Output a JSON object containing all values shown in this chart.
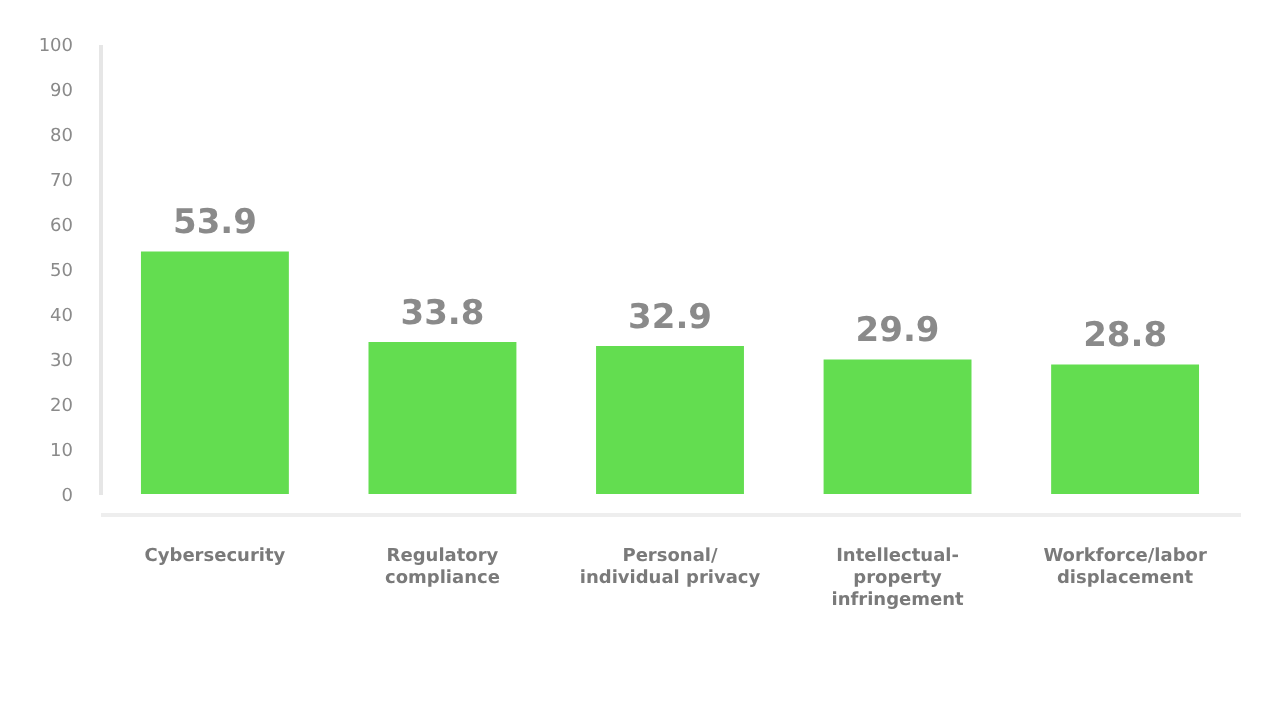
{
  "chart_data": {
    "type": "bar",
    "categories": [
      "Cybersecurity",
      "Regulatory compliance",
      "Personal/ individual privacy",
      "Intellectual-property infringement",
      "Workforce/labor displacement"
    ],
    "values": [
      53.9,
      33.8,
      32.9,
      29.9,
      28.8
    ],
    "color": "#63dd50",
    "ylim": [
      0,
      100
    ],
    "yticks": [
      0,
      10,
      20,
      30,
      40,
      50,
      60,
      70,
      80,
      90,
      100
    ],
    "grid": false,
    "data_labels": true
  }
}
